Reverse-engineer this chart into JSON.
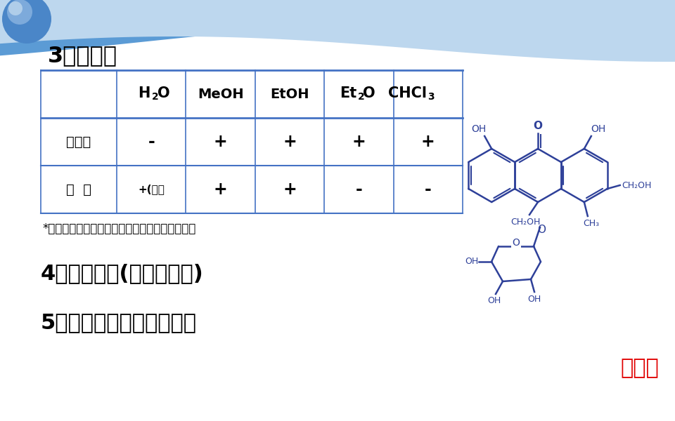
{
  "bg_white": "#ffffff",
  "bg_light": "#ddeef8",
  "wave_dark": "#2e75b6",
  "wave_mid": "#5b9bd5",
  "wave_light": "#bdd7ee",
  "title": "3．溶解性",
  "table_headers_display": [
    "H2O",
    "MeOH",
    "EtOH",
    "Et2O",
    "CHCl3"
  ],
  "row_labels": [
    "游离醌",
    "成  苷"
  ],
  "row1_data": [
    "-",
    "+",
    "+",
    "+",
    "+"
  ],
  "row2_data": [
    "+(热）",
    "+",
    "+",
    "-",
    "-"
  ],
  "note": "*蒽醌的碳苷在水中的溶解度都很小，易溶于吡啶",
  "point4": "4、不稳定性(主要指邻醌)",
  "point5": "5、多具有橙色或桔色荧光",
  "aloe_label": "芦荟苷",
  "aloe_color": "#e00000",
  "struct_color": "#2e4099",
  "line_color": "#4472c4",
  "text_black": "#000000"
}
